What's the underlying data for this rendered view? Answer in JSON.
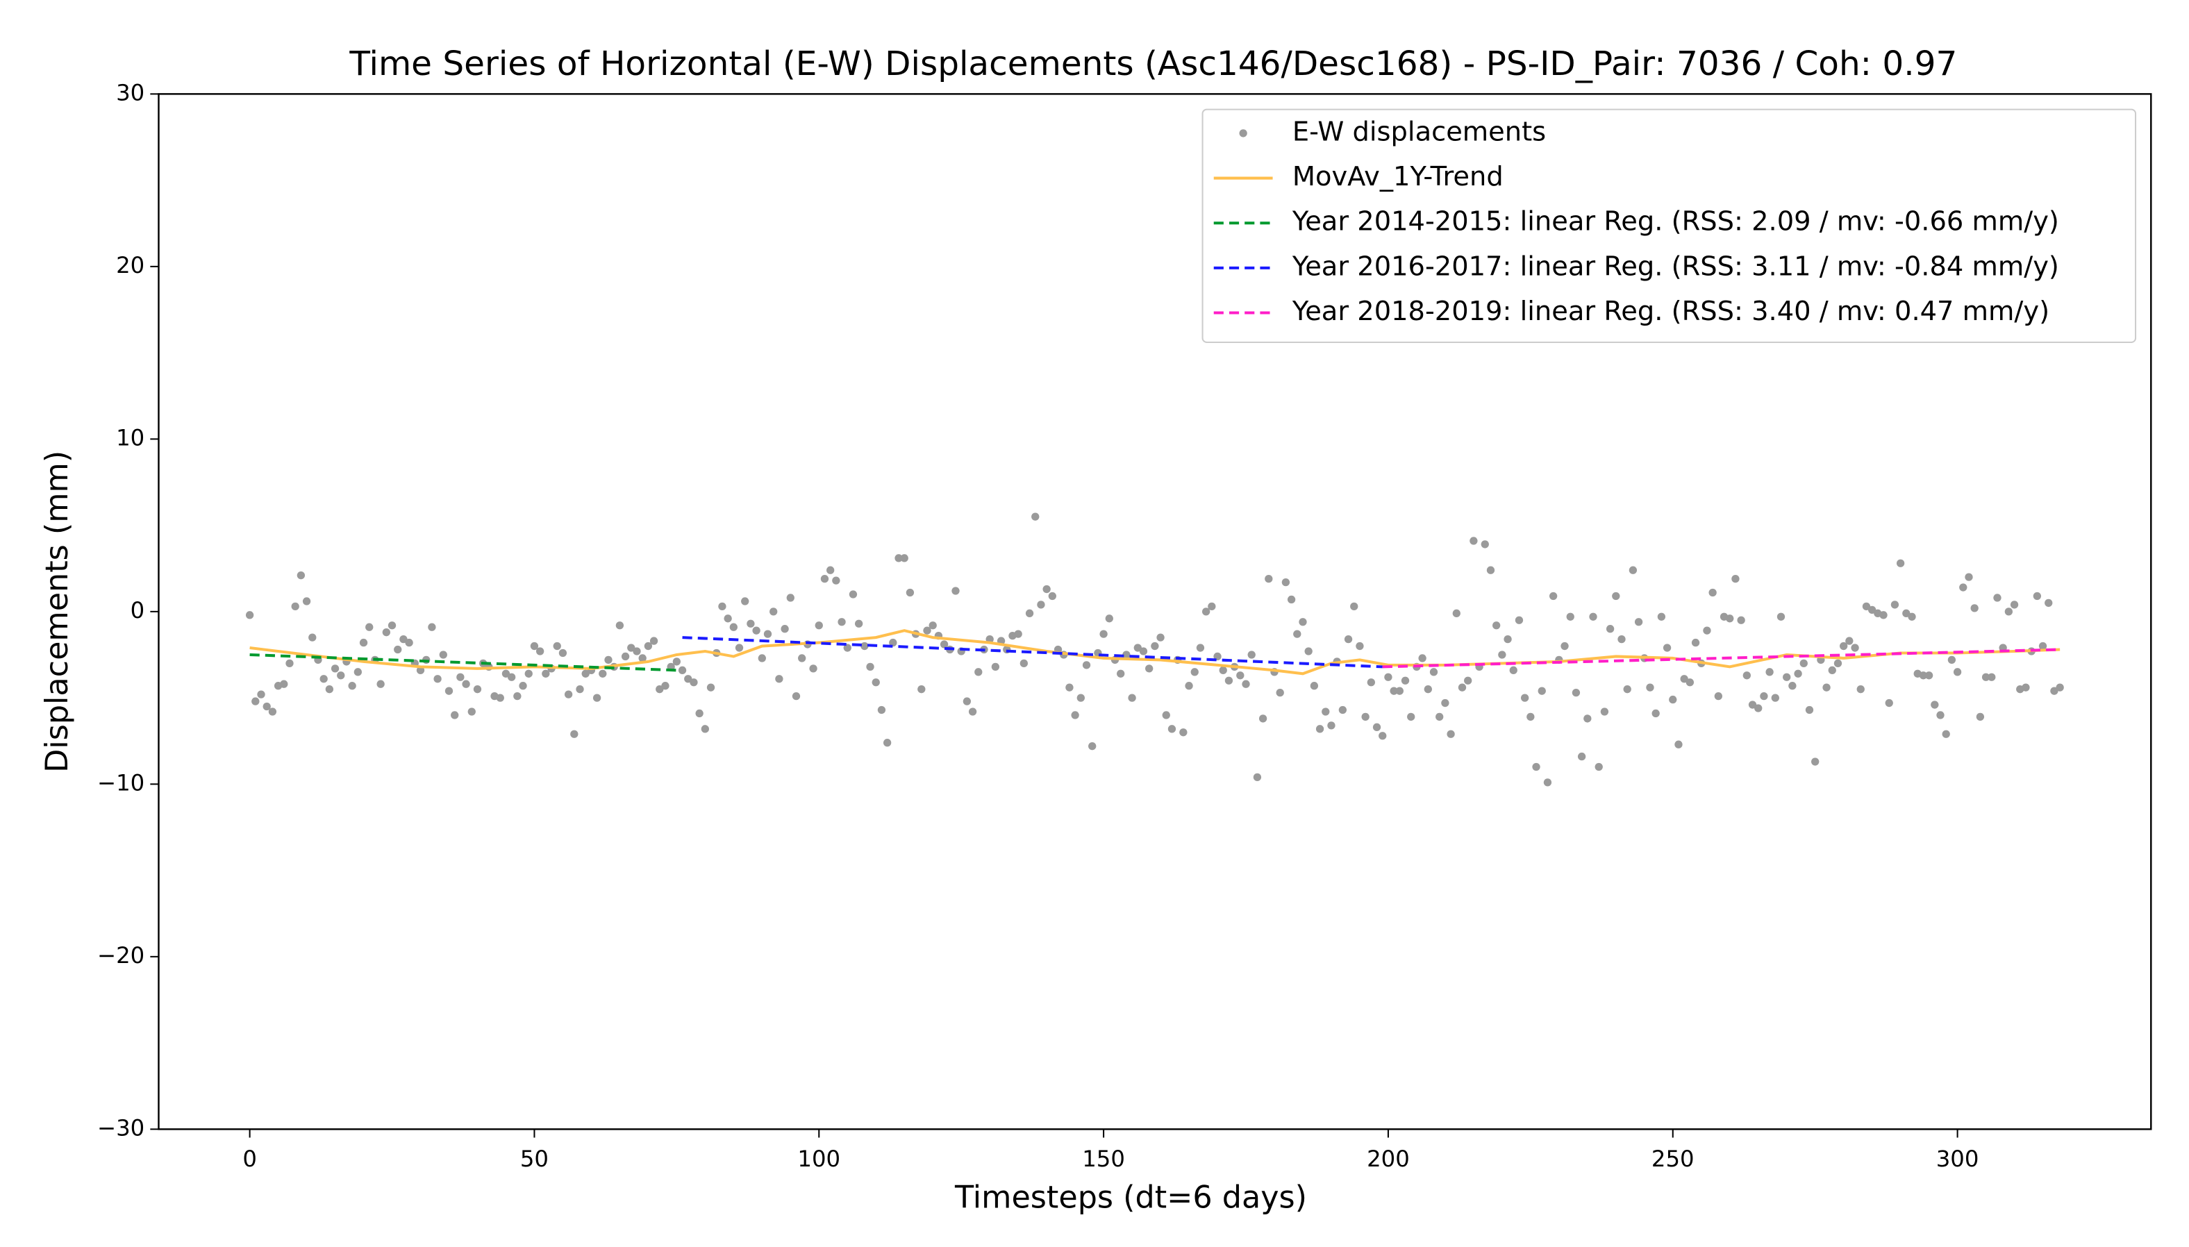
{
  "chart_data": {
    "type": "scatter",
    "title": "Time Series of Horizontal (E-W) Displacements (Asc146/Desc168) - PS-ID_Pair: 7036 / Coh: 0.97",
    "xlabel": "Timesteps (dt=6 days)",
    "ylabel": "Displacements (mm)",
    "xlim": [
      -16,
      334
    ],
    "ylim": [
      -30,
      30
    ],
    "xticks": [
      0,
      50,
      100,
      150,
      200,
      250,
      300
    ],
    "yticks": [
      {
        "value": -30,
        "label": "−30"
      },
      {
        "value": -20,
        "label": "−20"
      },
      {
        "value": -10,
        "label": "−10"
      },
      0,
      10,
      20,
      30
    ],
    "legend": "upper right",
    "series": [
      {
        "name": "E-W displacements",
        "color": "#9a9a9a",
        "style": "markers",
        "x": [
          0,
          1,
          2,
          3,
          4,
          5,
          6,
          7,
          8,
          9,
          10,
          11,
          12,
          13,
          14,
          15,
          16,
          17,
          18,
          19,
          20,
          21,
          22,
          23,
          24,
          25,
          26,
          27,
          28,
          29,
          30,
          31,
          32,
          33,
          34,
          35,
          36,
          37,
          38,
          39,
          40,
          41,
          42,
          43,
          44,
          45,
          46,
          47,
          48,
          49,
          50,
          51,
          52,
          53,
          54,
          55,
          56,
          57,
          58,
          59,
          60,
          61,
          62,
          63,
          64,
          65,
          66,
          67,
          68,
          69,
          70,
          71,
          72,
          73,
          74,
          75,
          76,
          77,
          78,
          79,
          80,
          81,
          82,
          83,
          84,
          85,
          86,
          87,
          88,
          89,
          90,
          91,
          92,
          93,
          94,
          95,
          96,
          97,
          98,
          99,
          100,
          101,
          102,
          103,
          104,
          105,
          106,
          107,
          108,
          109,
          110,
          111,
          112,
          113,
          114,
          115,
          116,
          117,
          118,
          119,
          120,
          121,
          122,
          123,
          124,
          125,
          126,
          127,
          128,
          129,
          130,
          131,
          132,
          133,
          134,
          135,
          136,
          137,
          138,
          139,
          140,
          141,
          142,
          143,
          144,
          145,
          146,
          147,
          148,
          149,
          150,
          151,
          152,
          153,
          154,
          155,
          156,
          157,
          158,
          159,
          160,
          161,
          162,
          163,
          164,
          165,
          166,
          167,
          168,
          169,
          170,
          171,
          172,
          173,
          174,
          175,
          176,
          177,
          178,
          179,
          180,
          181,
          182,
          183,
          184,
          185,
          186,
          187,
          188,
          189,
          190,
          191,
          192,
          193,
          194,
          195,
          196,
          197,
          198,
          199,
          200,
          201,
          202,
          203,
          204,
          205,
          206,
          207,
          208,
          209,
          210,
          211,
          212,
          213,
          214,
          215,
          216,
          217,
          218,
          219,
          220,
          221,
          222,
          223,
          224,
          225,
          226,
          227,
          228,
          229,
          230,
          231,
          232,
          233,
          234,
          235,
          236,
          237,
          238,
          239,
          240,
          241,
          242,
          243,
          244,
          245,
          246,
          247,
          248,
          249,
          250,
          251,
          252,
          253,
          254,
          255,
          256,
          257,
          258,
          259,
          260,
          261,
          262,
          263,
          264,
          265,
          266,
          267,
          268,
          269,
          270,
          271,
          272,
          273,
          274,
          275,
          276,
          277,
          278,
          279,
          280,
          281,
          282,
          283,
          284,
          285,
          286,
          287,
          288,
          289,
          290,
          291,
          292,
          293,
          294,
          295,
          296,
          297,
          298,
          299,
          300,
          301,
          302,
          303,
          304,
          305,
          306,
          307,
          308,
          309,
          310,
          311,
          312,
          313,
          314,
          315,
          316,
          317,
          318
        ],
        "values": [
          -0.2,
          -5.2,
          -4.8,
          -5.5,
          -5.8,
          -4.3,
          -4.2,
          -3.0,
          0.3,
          2.1,
          0.6,
          -1.5,
          -2.8,
          -3.9,
          -4.5,
          -3.3,
          -3.7,
          -2.9,
          -4.3,
          -3.5,
          -1.8,
          -0.9,
          -2.8,
          -4.2,
          -1.2,
          -0.8,
          -2.2,
          -1.6,
          -1.8,
          -3.0,
          -3.4,
          -2.8,
          -0.9,
          -3.9,
          -2.5,
          -4.6,
          -6.0,
          -3.8,
          -4.2,
          -5.8,
          -4.5,
          -3.0,
          -3.2,
          -4.9,
          -5.0,
          -3.6,
          -3.8,
          -4.9,
          -4.3,
          -3.6,
          -2.0,
          -2.3,
          -3.6,
          -3.3,
          -2.0,
          -2.4,
          -4.8,
          -7.1,
          -4.5,
          -3.6,
          -3.4,
          -5.0,
          -3.6,
          -2.8,
          -3.2,
          -0.8,
          -2.6,
          -2.1,
          -2.3,
          -2.7,
          -2.0,
          -1.7,
          -4.5,
          -4.3,
          -3.2,
          -2.9,
          -3.4,
          -3.9,
          -4.1,
          -5.9,
          -6.8,
          -4.4,
          -2.4,
          0.3,
          -0.4,
          -0.9,
          -2.1,
          0.6,
          -0.7,
          -1.1,
          -2.7,
          -1.3,
          0.0,
          -3.9,
          -1.0,
          0.8,
          -4.9,
          -2.7,
          -1.9,
          -3.3,
          -0.8,
          1.9,
          2.4,
          1.8,
          -0.6,
          -2.1,
          1.0,
          -0.7,
          -2.0,
          -3.2,
          -4.1,
          -5.7,
          -7.6,
          -1.8,
          3.1,
          3.1,
          1.1,
          -1.3,
          -4.5,
          -1.1,
          -0.8,
          -1.4,
          -1.9,
          -2.2,
          1.2,
          -2.3,
          -5.2,
          -5.8,
          -3.5,
          -2.2,
          -1.6,
          -3.2,
          -1.7,
          -2.2,
          -1.4,
          -1.3,
          -3.0,
          -0.1,
          5.5,
          0.4,
          1.3,
          0.9,
          -2.2,
          -2.5,
          -4.4,
          -6.0,
          -5.0,
          -3.1,
          -7.8,
          -2.4,
          -1.3,
          -0.4,
          -2.8,
          -3.6,
          -2.5,
          -5.0,
          -2.1,
          -2.3,
          -3.3,
          -2.0,
          -1.5,
          -6.0,
          -6.8,
          -2.8,
          -7.0,
          -4.3,
          -3.5,
          -2.1,
          0.0,
          0.3,
          -2.6,
          -3.4,
          -4.0,
          -3.2,
          -3.7,
          -4.2,
          -2.5,
          -9.6,
          -6.2,
          1.9,
          -3.5,
          -4.7,
          1.7,
          0.7,
          -1.3,
          -0.6,
          -2.3,
          -4.3,
          -6.8,
          -5.8,
          -6.6,
          -2.9,
          -5.7,
          -1.6,
          0.3,
          -2.0,
          -6.1,
          -4.1,
          -6.7,
          -7.2,
          -3.8,
          -4.6,
          -4.6,
          -4.0,
          -6.1,
          -3.2,
          -2.7,
          -4.5,
          -3.5,
          -6.1,
          -5.3,
          -7.1,
          -0.1,
          -4.4,
          -4.0,
          4.1,
          -3.2,
          3.9,
          2.4,
          -0.8,
          -2.5,
          -1.6,
          -3.4,
          -0.5,
          -5.0,
          -6.1,
          -9.0,
          -4.6,
          -9.9,
          0.9,
          -2.8,
          -2.0,
          -0.3,
          -4.7,
          -8.4,
          -6.2,
          -0.3,
          -9.0,
          -5.8,
          -1.0,
          0.9,
          -1.6,
          -4.5,
          2.4,
          -0.6,
          -2.7,
          -4.4,
          -5.9,
          -0.3,
          -2.1,
          -5.1,
          -7.7,
          -3.9,
          -4.1,
          -1.8,
          -3.0,
          -1.1,
          1.1,
          -4.9,
          -0.3,
          -0.4,
          1.9,
          -0.5,
          -3.7,
          -5.4,
          -5.6,
          -4.9,
          -3.5,
          -5.0,
          -0.3,
          -3.8,
          -4.3,
          -3.6,
          -3.0,
          -5.7,
          -8.7,
          -2.8,
          -4.4,
          -3.4,
          -3.0,
          -2.0,
          -1.7,
          -2.1,
          -4.5,
          0.3,
          0.1,
          -0.1,
          -0.2,
          -5.3,
          0.4,
          2.8,
          -0.1,
          -0.3,
          -3.6,
          -3.7,
          -3.7,
          -5.4,
          -6.0,
          -7.1,
          -2.8,
          -3.5,
          1.4,
          2.0,
          0.2,
          -6.1,
          -3.8,
          -3.8,
          0.8,
          -2.1,
          0.0,
          0.4,
          -4.5,
          -4.4,
          -2.3,
          0.9,
          -2.0,
          0.5,
          -4.6,
          -4.4
        ]
      },
      {
        "name": "MovAv_1Y-Trend",
        "color": "#ffbf4d",
        "style": "line",
        "x": [
          0,
          10,
          20,
          30,
          40,
          50,
          60,
          70,
          75,
          80,
          85,
          90,
          100,
          110,
          115,
          120,
          130,
          140,
          150,
          160,
          170,
          180,
          185,
          190,
          195,
          200,
          210,
          220,
          230,
          240,
          250,
          260,
          270,
          280,
          290,
          300,
          310,
          318
        ],
        "values": [
          -2.1,
          -2.5,
          -2.9,
          -3.2,
          -3.3,
          -3.2,
          -3.3,
          -2.9,
          -2.5,
          -2.3,
          -2.6,
          -2.0,
          -1.8,
          -1.5,
          -1.1,
          -1.5,
          -1.8,
          -2.3,
          -2.7,
          -2.8,
          -3.1,
          -3.4,
          -3.6,
          -3.0,
          -2.8,
          -3.1,
          -3.1,
          -3.0,
          -2.9,
          -2.6,
          -2.7,
          -3.2,
          -2.5,
          -2.7,
          -2.4,
          -2.4,
          -2.3,
          -2.2
        ]
      },
      {
        "name": "Year 2014-2015: linear Reg. (RSS: 2.09 / mv: -0.66 mm/y)",
        "color": "#00992e",
        "style": "dashed",
        "x": [
          0,
          75
        ],
        "values": [
          -2.5,
          -3.4
        ]
      },
      {
        "name": "Year 2016-2017: linear Reg. (RSS: 3.11 / mv: -0.84 mm/y)",
        "color": "#1a1aff",
        "style": "dashed",
        "x": [
          76,
          199
        ],
        "values": [
          -1.5,
          -3.2
        ]
      },
      {
        "name": "Year 2018-2019: linear Reg. (RSS: 3.40 / mv: 0.47 mm/y)",
        "color": "#ff1ec8",
        "style": "dashed",
        "x": [
          199,
          318
        ],
        "values": [
          -3.2,
          -2.2
        ]
      }
    ]
  }
}
